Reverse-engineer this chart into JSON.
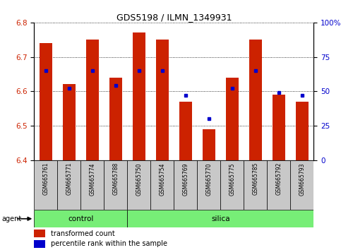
{
  "title": "GDS5198 / ILMN_1349931",
  "samples": [
    "GSM665761",
    "GSM665771",
    "GSM665774",
    "GSM665788",
    "GSM665750",
    "GSM665754",
    "GSM665769",
    "GSM665770",
    "GSM665775",
    "GSM665785",
    "GSM665792",
    "GSM665793"
  ],
  "bar_values": [
    6.74,
    6.62,
    6.75,
    6.64,
    6.77,
    6.75,
    6.57,
    6.49,
    6.64,
    6.75,
    6.59,
    6.57
  ],
  "bar_base": 6.4,
  "dot_percentiles": [
    65,
    52,
    65,
    54,
    65,
    65,
    47,
    30,
    52,
    65,
    49,
    47
  ],
  "control_count": 4,
  "silica_count": 8,
  "ylim_left": [
    6.4,
    6.8
  ],
  "ylim_right": [
    0,
    100
  ],
  "yticks_left": [
    6.4,
    6.5,
    6.6,
    6.7,
    6.8
  ],
  "yticks_right": [
    0,
    25,
    50,
    75,
    100
  ],
  "ytick_labels_right": [
    "0",
    "25",
    "50",
    "75",
    "100%"
  ],
  "bar_color": "#CC2200",
  "dot_color": "#0000CC",
  "background_labels": "#C8C8C8",
  "group_bar_color": "#77EE77",
  "agent_label": "agent",
  "legend_bar_label": "transformed count",
  "legend_dot_label": "percentile rank within the sample",
  "group_labels": [
    "control",
    "silica"
  ]
}
